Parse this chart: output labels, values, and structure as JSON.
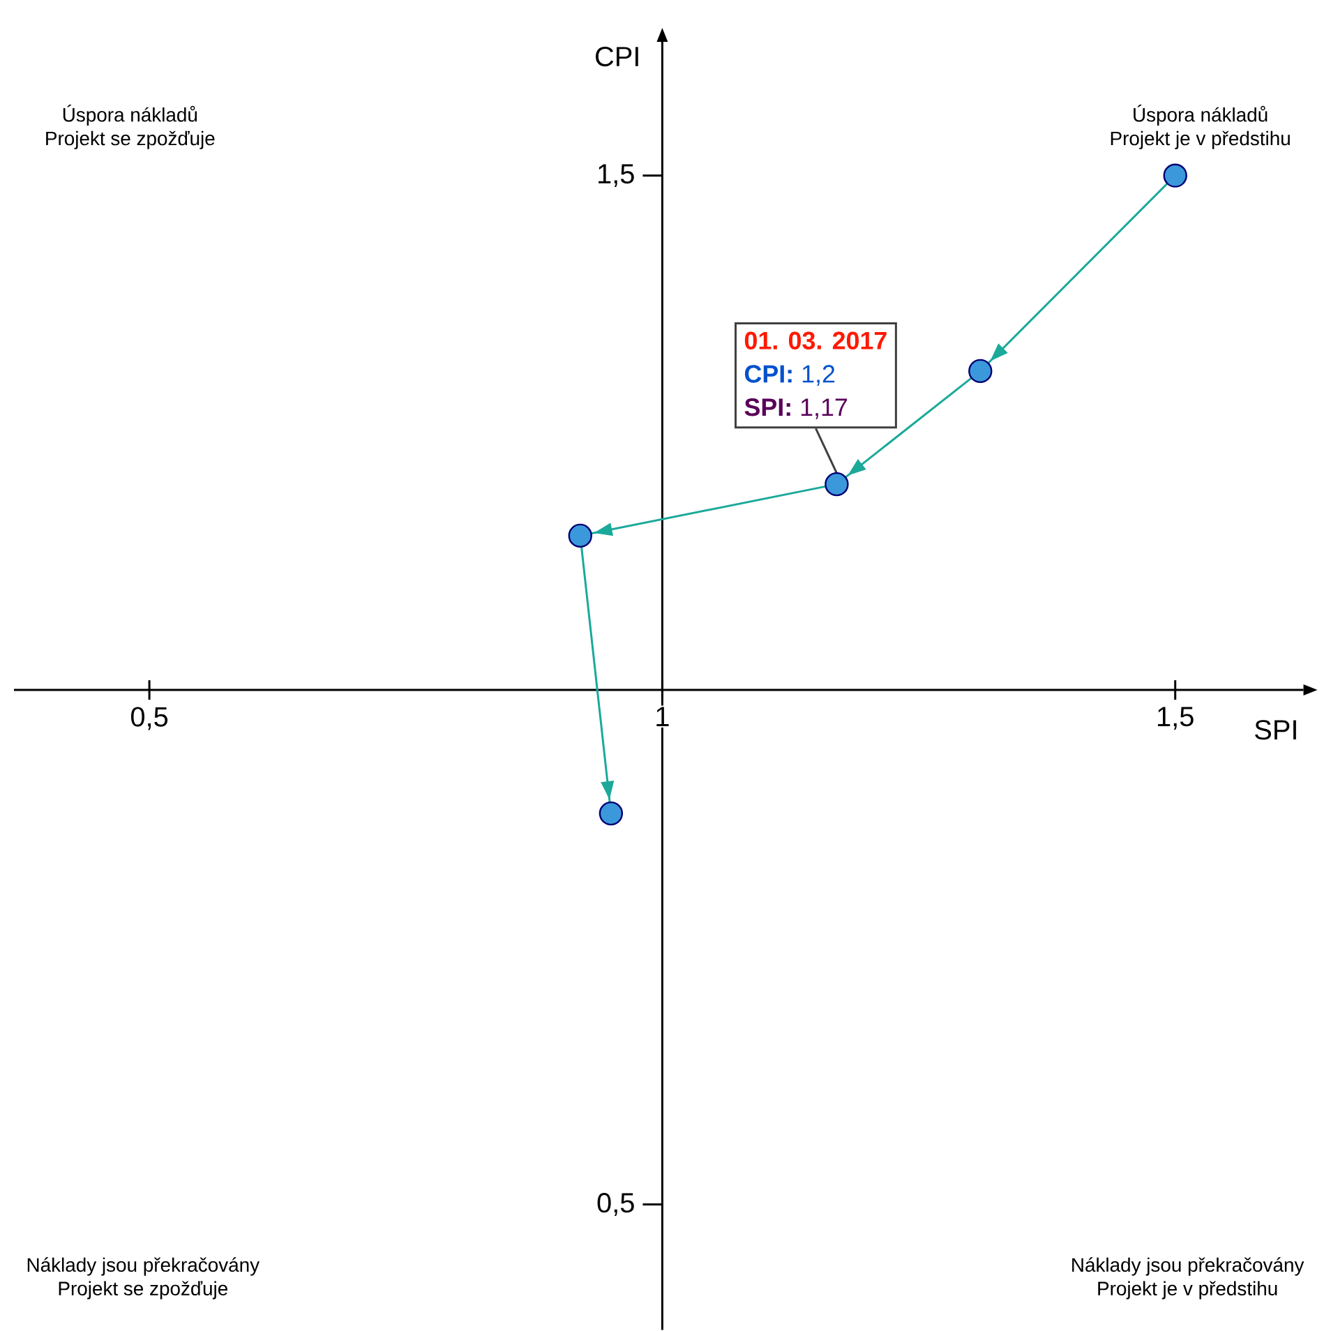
{
  "chart_data": {
    "type": "line",
    "xlabel": "SPI",
    "ylabel": "CPI",
    "xlim": [
      0.368,
      1.625
    ],
    "ylim": [
      0.378,
      1.63
    ],
    "xticks": [
      {
        "value": 0.5,
        "label": "0,5"
      },
      {
        "value": 1,
        "label": "1"
      },
      {
        "value": 1.5,
        "label": "1,5"
      }
    ],
    "yticks": [
      {
        "value": 0.5,
        "label": "0,5"
      },
      {
        "value": 1.5,
        "label": "1,5"
      }
    ],
    "marker": "circle",
    "line_style": "solid",
    "series": [
      {
        "color": "#1ba99a",
        "x": [
          1.5,
          1.31,
          1.17,
          0.92,
          0.95
        ],
        "values": [
          1.5,
          1.31,
          1.2,
          1.15,
          0.88
        ]
      }
    ],
    "annotations": [
      "Úspora nákladů",
      "Projekt se zpožďuje",
      "Úspora nákladů",
      "Projekt je v předstihu",
      "Náklady jsou překračovány",
      "Projekt se zpožďuje",
      "Náklady jsou překračovány",
      "Projekt je v předstihu",
      "**01. 03. 2017**",
      "**CPI:** 1,2",
      {
        "text": "**SPI:** 1,17",
        "x": 1.17,
        "y": 1.2
      }
    ]
  }
}
